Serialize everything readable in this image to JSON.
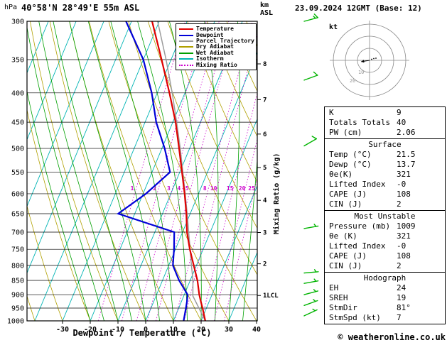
{
  "header": {
    "pressure_unit": "hPa",
    "title": "40°58'N 28°49'E 55m ASL",
    "km_label": "km",
    "asl_label": "ASL",
    "datetime": "23.09.2024 12GMT (Base: 12)"
  },
  "axes": {
    "pressure_ticks": [
      300,
      350,
      400,
      450,
      500,
      550,
      600,
      650,
      700,
      750,
      800,
      850,
      900,
      950,
      1000
    ],
    "temp_ticks": [
      -30,
      -20,
      -10,
      0,
      10,
      20,
      30,
      40
    ],
    "xlabel": "Dewpoint / Temperature (°C)",
    "km_ticks": [
      8,
      7,
      6,
      5,
      4,
      3,
      2
    ],
    "lcl_label": "1LCL",
    "mixing_ratio_axis_label": "Mixing Ratio (g/kg)"
  },
  "colors": {
    "temperature": "#e00000",
    "dewpoint": "#0000d8",
    "parcel": "#9c9c9c",
    "dry_adiabat": "#b0a000",
    "wet_adiabat": "#00a000",
    "isotherm": "#00b4b4",
    "mixing_ratio": "#cc00cc",
    "wind_barb": "#00b400",
    "frame": "#000000"
  },
  "legend": [
    {
      "label": "Temperature",
      "color": "#e00000",
      "dash": "solid"
    },
    {
      "label": "Dewpoint",
      "color": "#0000d8",
      "dash": "solid"
    },
    {
      "label": "Parcel Trajectory",
      "color": "#9c9c9c",
      "dash": "solid"
    },
    {
      "label": "Dry Adiabat",
      "color": "#b0a000",
      "dash": "solid"
    },
    {
      "label": "Wet Adiabat",
      "color": "#00a000",
      "dash": "solid"
    },
    {
      "label": "Isotherm",
      "color": "#00b4b4",
      "dash": "solid"
    },
    {
      "label": "Mixing Ratio",
      "color": "#cc00cc",
      "dash": "dot"
    }
  ],
  "chart_data": {
    "type": "skewt_log_p_sounding",
    "title": "40°58'N 28°49'E 55m ASL",
    "valid": "23.09.2024 12GMT (Base: 12)",
    "xlim": [
      -30,
      40
    ],
    "pressure_range": [
      300,
      1000
    ],
    "isotherm_step": 10,
    "pressure_hpa": [
      1000,
      950,
      925,
      900,
      850,
      800,
      750,
      700,
      650,
      600,
      550,
      500,
      450,
      400,
      350,
      300
    ],
    "series": [
      {
        "name": "Parcel Trajectory",
        "color": "#9c9c9c",
        "pressure": [
          1000,
          905,
          850,
          800,
          750,
          700,
          650,
          600,
          550,
          500,
          450,
          400,
          350,
          300
        ],
        "values": [
          21.5,
          13.3,
          11.0,
          8.2,
          5.3,
          2.2,
          -1.1,
          -4.8,
          -8.9,
          -13.4,
          -18.6,
          -24.6,
          -31.8,
          -40.6
        ]
      },
      {
        "name": "Temperature",
        "color": "#e00000",
        "values": [
          21.5,
          18.6,
          17.0,
          15.4,
          12.6,
          9.0,
          5.2,
          1.6,
          -1.4,
          -5.0,
          -9.2,
          -13.8,
          -19.0,
          -25.6,
          -33.4,
          -42.6
        ]
      },
      {
        "name": "Dewpoint",
        "color": "#0000d8",
        "values": [
          13.7,
          12.6,
          12.0,
          11.2,
          6.0,
          1.5,
          -0.5,
          -3.0,
          -26.0,
          -19.0,
          -13.5,
          -19.0,
          -26.0,
          -32.0,
          -40.0,
          -52.0
        ]
      }
    ],
    "mixing_ratio_labels": [
      1,
      2,
      3,
      4,
      5,
      8,
      10,
      15,
      20,
      25
    ],
    "wind_barbs": [
      {
        "p": 300,
        "spd": 15,
        "dir": 75
      },
      {
        "p": 380,
        "spd": 10,
        "dir": 70
      },
      {
        "p": 495,
        "spd": 10,
        "dir": 60
      },
      {
        "p": 690,
        "spd": 5,
        "dir": 80
      },
      {
        "p": 825,
        "spd": 7,
        "dir": 85
      },
      {
        "p": 860,
        "spd": 7,
        "dir": 80
      },
      {
        "p": 900,
        "spd": 8,
        "dir": 75
      },
      {
        "p": 940,
        "spd": 7,
        "dir": 70
      },
      {
        "p": 980,
        "spd": 5,
        "dir": 65
      }
    ],
    "hodograph": {
      "label": "kt",
      "rings_kt": [
        10,
        20,
        30
      ],
      "storm_dir_deg": 81,
      "storm_spd_kt": 7
    }
  },
  "panel": {
    "summary": {
      "rows": [
        [
          "K",
          "9"
        ],
        [
          "Totals Totals",
          "40"
        ],
        [
          "PW (cm)",
          "2.06"
        ]
      ]
    },
    "surface": {
      "title": "Surface",
      "rows": [
        [
          "Temp (°C)",
          "21.5"
        ],
        [
          "Dewp (°C)",
          "13.7"
        ],
        [
          "θe(K)",
          "321"
        ],
        [
          "Lifted Index",
          "-0"
        ],
        [
          "CAPE (J)",
          "108"
        ],
        [
          "CIN (J)",
          "2"
        ]
      ]
    },
    "most_unstable": {
      "title": "Most Unstable",
      "rows": [
        [
          "Pressure (mb)",
          "1009"
        ],
        [
          "θe (K)",
          "321"
        ],
        [
          "Lifted Index",
          "-0"
        ],
        [
          "CAPE (J)",
          "108"
        ],
        [
          "CIN (J)",
          "2"
        ]
      ]
    },
    "hodograph": {
      "title": "Hodograph",
      "rows": [
        [
          "EH",
          "24"
        ],
        [
          "SREH",
          "19"
        ],
        [
          "StmDir",
          "81°"
        ],
        [
          "StmSpd (kt)",
          "7"
        ]
      ]
    }
  },
  "footer": {
    "copyright": "© weatheronline.co.uk"
  }
}
